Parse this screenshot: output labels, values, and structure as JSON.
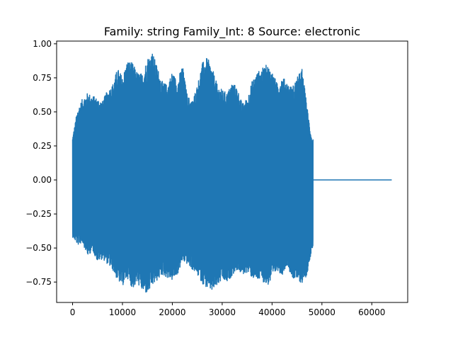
{
  "chart_data": {
    "type": "line",
    "title": "Family: string Family_Int: 8 Source: electronic",
    "xlabel": "",
    "ylabel": "",
    "xlim": [
      -3200,
      67200
    ],
    "ylim": [
      -0.9,
      1.02
    ],
    "x_ticks": [
      0,
      10000,
      20000,
      30000,
      40000,
      50000,
      60000
    ],
    "x_tick_labels": [
      "0",
      "10000",
      "20000",
      "30000",
      "40000",
      "50000",
      "60000"
    ],
    "y_ticks": [
      -0.75,
      -0.5,
      -0.25,
      0.0,
      0.25,
      0.5,
      0.75,
      1.0
    ],
    "y_tick_labels": [
      "−0.75",
      "−0.50",
      "−0.25",
      "0.00",
      "0.25",
      "0.50",
      "0.75",
      "1.00"
    ],
    "grid": false,
    "series": [
      {
        "color": "#1f77b4",
        "signal_end": 48200,
        "x_end": 64000,
        "tail_value": 0.0,
        "envelope_x": [
          0,
          1000,
          2000,
          3000,
          4000,
          5000,
          6000,
          7000,
          8000,
          9000,
          10000,
          11000,
          12000,
          13000,
          14000,
          15000,
          16000,
          17000,
          18000,
          19000,
          20000,
          21000,
          22000,
          23000,
          24000,
          25000,
          26000,
          27000,
          28000,
          29000,
          30000,
          31000,
          32000,
          33000,
          34000,
          35000,
          36000,
          37000,
          38000,
          39000,
          40000,
          41000,
          42000,
          43000,
          44000,
          45000,
          46000,
          47000,
          48000
        ],
        "envelope_max": [
          0.32,
          0.52,
          0.6,
          0.64,
          0.62,
          0.6,
          0.58,
          0.66,
          0.7,
          0.82,
          0.76,
          0.88,
          0.86,
          0.79,
          0.78,
          0.9,
          0.94,
          0.83,
          0.72,
          0.7,
          0.8,
          0.72,
          0.85,
          0.62,
          0.58,
          0.7,
          0.86,
          0.9,
          0.82,
          0.7,
          0.66,
          0.64,
          0.72,
          0.68,
          0.56,
          0.6,
          0.73,
          0.79,
          0.82,
          0.85,
          0.8,
          0.71,
          0.76,
          0.72,
          0.68,
          0.75,
          0.82,
          0.54,
          0.3
        ],
        "envelope_min": [
          -0.42,
          -0.48,
          -0.46,
          -0.56,
          -0.52,
          -0.6,
          -0.58,
          -0.62,
          -0.66,
          -0.74,
          -0.78,
          -0.72,
          -0.8,
          -0.76,
          -0.82,
          -0.84,
          -0.78,
          -0.74,
          -0.7,
          -0.72,
          -0.74,
          -0.7,
          -0.6,
          -0.62,
          -0.66,
          -0.7,
          -0.76,
          -0.8,
          -0.82,
          -0.78,
          -0.74,
          -0.76,
          -0.7,
          -0.66,
          -0.7,
          -0.68,
          -0.72,
          -0.74,
          -0.74,
          -0.78,
          -0.74,
          -0.66,
          -0.7,
          -0.62,
          -0.72,
          -0.74,
          -0.76,
          -0.7,
          -0.5
        ]
      }
    ]
  }
}
